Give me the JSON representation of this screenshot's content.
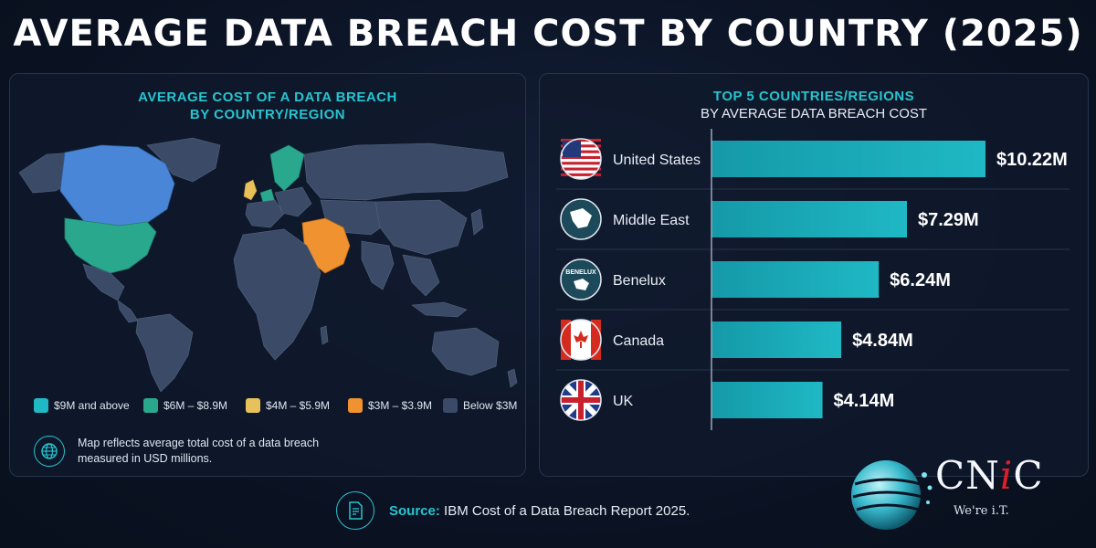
{
  "title": "AVERAGE DATA BREACH COST BY COUNTRY (2025)",
  "map_panel": {
    "title_line1": "AVERAGE COST OF A DATA BREACH",
    "title_line2": "BY COUNTRY/REGION",
    "legend": [
      {
        "label": "$9M and above",
        "color": "#1fb8c4"
      },
      {
        "label": "$6M – $8.9M",
        "color": "#2aa88e"
      },
      {
        "label": "$4M – $5.9M",
        "color": "#e8c15a"
      },
      {
        "label": "$3M – $3.9M",
        "color": "#ef922f"
      },
      {
        "label": "Below $3M",
        "color": "#3b4a66"
      }
    ],
    "note": "Map reflects average total cost of a data breach measured in USD millions.",
    "note_icon": "globe-icon"
  },
  "chart_data": {
    "type": "bar",
    "orientation": "horizontal",
    "title": "TOP 5 COUNTRIES/REGIONS",
    "subtitle": "BY AVERAGE DATA BREACH COST",
    "categories": [
      "United States",
      "Middle East",
      "Benelux",
      "Canada",
      "UK"
    ],
    "values": [
      10.22,
      7.29,
      6.24,
      4.84,
      4.14
    ],
    "value_labels": [
      "$10.22M",
      "$7.29M",
      "$6.24M",
      "$4.84M",
      "$4.14M"
    ],
    "icons": [
      "us-flag-icon",
      "middle-east-map-icon",
      "benelux-map-icon",
      "canada-flag-icon",
      "uk-flag-icon"
    ],
    "benelux_badge": "BENELUX",
    "bar_color": "#1fb8c4",
    "xlim": [
      0,
      10.22
    ],
    "grid": false
  },
  "footer": {
    "source_label": "Source:",
    "source_text": "IBM Cost of a Data Breach Report 2025.",
    "icon": "document-icon"
  },
  "logo": {
    "name_part1": "CN",
    "name_part2": "i",
    "name_part3": "C",
    "tagline": "We're i.T."
  }
}
